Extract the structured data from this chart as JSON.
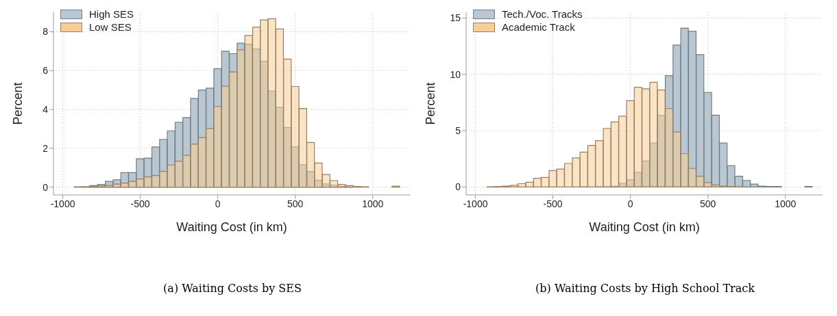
{
  "chart_data": [
    {
      "type": "histogram",
      "xlabel": "Waiting Cost (in km)",
      "ylabel": "Percent",
      "annotations": [
        "(a) Waiting Costs by SES"
      ],
      "bins": [
        -925,
        -875,
        -825,
        -775,
        -725,
        -675,
        -625,
        -575,
        -525,
        -475,
        -425,
        -375,
        -325,
        -275,
        -225,
        -175,
        -125,
        -75,
        -25,
        25,
        75,
        125,
        175,
        225,
        275,
        325,
        375,
        425,
        475,
        525,
        575,
        625,
        675,
        725,
        775,
        825,
        875,
        925,
        975,
        1025,
        1075,
        1125,
        1175
      ],
      "series": [
        {
          "name": "High SES",
          "color": "#b8c7d1",
          "values": [
            0.02,
            0.02,
            0.08,
            0.14,
            0.3,
            0.38,
            0.75,
            0.75,
            1.46,
            1.5,
            2.07,
            2.46,
            2.9,
            3.34,
            3.58,
            4.57,
            5.0,
            5.1,
            6.1,
            7.0,
            6.87,
            7.41,
            7.36,
            7.11,
            6.49,
            4.95,
            4.11,
            3.07,
            2.08,
            1.15,
            0.8,
            0.36,
            0.17,
            0.1,
            0.04,
            0.02,
            0,
            0,
            0,
            0,
            0,
            0
          ]
        },
        {
          "name": "Low SES",
          "color": "#f7cd98",
          "values": [
            0,
            0.02,
            0.03,
            0.06,
            0.08,
            0.16,
            0.21,
            0.3,
            0.42,
            0.53,
            0.6,
            0.81,
            1.14,
            1.34,
            1.64,
            2.22,
            2.55,
            3.02,
            4.15,
            5.2,
            5.93,
            7.07,
            7.81,
            8.24,
            8.61,
            8.67,
            8.14,
            6.59,
            5.18,
            4.05,
            2.3,
            1.24,
            0.65,
            0.34,
            0.14,
            0.08,
            0.04,
            0.02,
            0,
            0,
            0,
            0.05
          ]
        }
      ],
      "xlim": [
        -1060,
        1240
      ],
      "xticks": [
        -1000,
        -500,
        0,
        500,
        1000
      ],
      "ylim": [
        -0.4,
        9
      ],
      "yticks": [
        0,
        2,
        4,
        6,
        8
      ],
      "grid": true,
      "legend": "top left"
    },
    {
      "type": "histogram",
      "xlabel": "Waiting Cost (in km)",
      "ylabel": "Percent",
      "annotations": [
        "(b) Waiting Costs by High School Track"
      ],
      "bins": [
        -925,
        -875,
        -825,
        -775,
        -725,
        -675,
        -625,
        -575,
        -525,
        -475,
        -425,
        -375,
        -325,
        -275,
        -225,
        -175,
        -125,
        -75,
        -25,
        25,
        75,
        125,
        175,
        225,
        275,
        325,
        375,
        425,
        475,
        525,
        575,
        625,
        675,
        725,
        775,
        825,
        875,
        925,
        975,
        1025,
        1075,
        1125,
        1175
      ],
      "series": [
        {
          "name": "Tech./Voc. Tracks",
          "color": "#b8c7d1",
          "values": [
            0,
            0,
            0,
            0,
            0,
            0,
            0,
            0,
            0,
            0,
            0,
            0,
            0.02,
            0,
            0.02,
            0.03,
            0.07,
            0.33,
            0.64,
            1.29,
            2.31,
            3.91,
            6.37,
            9.88,
            12.59,
            14.1,
            13.83,
            11.74,
            8.4,
            6.38,
            3.9,
            1.91,
            0.96,
            0.59,
            0.26,
            0.09,
            0.05,
            0.05,
            0,
            0,
            0,
            0.05
          ]
        },
        {
          "name": "Academic Track",
          "color": "#f7cd98",
          "values": [
            0.03,
            0.05,
            0.08,
            0.16,
            0.3,
            0.43,
            0.78,
            0.85,
            1.46,
            1.6,
            2.09,
            2.59,
            3.1,
            3.69,
            4.12,
            5.2,
            5.77,
            6.28,
            7.67,
            8.85,
            8.71,
            9.29,
            8.61,
            6.96,
            4.89,
            2.97,
            1.65,
            0.96,
            0.4,
            0.19,
            0.09,
            0.03,
            0.02,
            0,
            0,
            0,
            0,
            0,
            0,
            0,
            0,
            0
          ]
        }
      ],
      "xlim": [
        -1060,
        1240
      ],
      "xticks": [
        -1000,
        -500,
        0,
        500,
        1000
      ],
      "ylim": [
        -0.7,
        15.5
      ],
      "yticks": [
        0,
        5,
        10,
        15
      ],
      "grid": true,
      "legend": "top left"
    }
  ]
}
